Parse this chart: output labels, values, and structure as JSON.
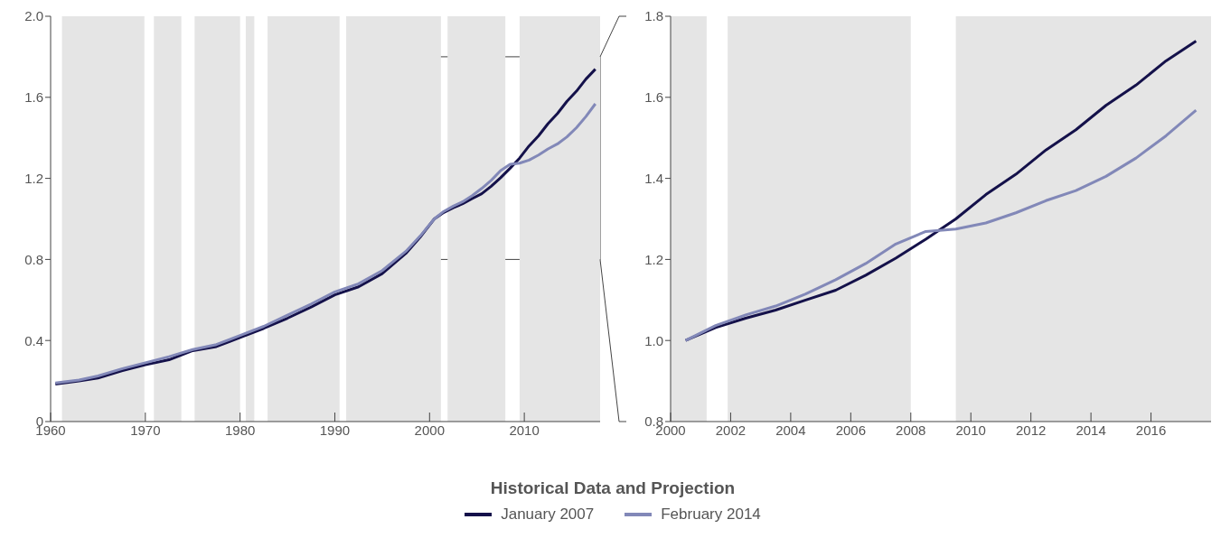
{
  "chart_data": [
    {
      "type": "line",
      "xlim": [
        1960,
        2018
      ],
      "xticks": [
        1960,
        1970,
        1980,
        1990,
        2000,
        2010
      ],
      "ylim": [
        0,
        2
      ],
      "yticks": [
        0,
        0.4,
        0.8,
        1.2,
        1.6,
        {
          "value": 2,
          "label": "2.0"
        }
      ],
      "grid": false,
      "legend": "bottom",
      "legend_title": "Historical Data and Projection",
      "bands": [
        {
          "axis": "x",
          "from": 1961.2,
          "to": 1969.9,
          "color": "#e5e5e5"
        },
        {
          "axis": "x",
          "from": 1970.9,
          "to": 1973.8,
          "color": "#e5e5e5"
        },
        {
          "axis": "x",
          "from": 1975.2,
          "to": 1980.0,
          "color": "#e5e5e5"
        },
        {
          "axis": "x",
          "from": 1980.6,
          "to": 1981.5,
          "color": "#e5e5e5"
        },
        {
          "axis": "x",
          "from": 1982.9,
          "to": 1990.5,
          "color": "#e5e5e5"
        },
        {
          "axis": "x",
          "from": 1991.2,
          "to": 2001.2,
          "color": "#e5e5e5"
        },
        {
          "axis": "x",
          "from": 2001.9,
          "to": 2008.0,
          "color": "#e5e5e5"
        },
        {
          "axis": "x",
          "from": 2009.5,
          "to": 2018,
          "color": "#e5e5e5"
        }
      ],
      "series": [
        {
          "name": "January 2007",
          "color": "#14114a",
          "x": [
            1960.5,
            1963,
            1965,
            1967.5,
            1970,
            1972.5,
            1975,
            1977.5,
            1980,
            1982.5,
            1985,
            1987.5,
            1990,
            1992.5,
            1995,
            1997.5,
            1999,
            2000.5,
            2001.5,
            2002.5,
            2003.5,
            2004.5,
            2005.5,
            2006.5,
            2007.5,
            2008.5,
            2009.5,
            2010.5,
            2011.5,
            2012.5,
            2013.5,
            2014.5,
            2015.5,
            2016.5,
            2017.5
          ],
          "values": [
            0.185,
            0.2,
            0.215,
            0.25,
            0.28,
            0.305,
            0.35,
            0.37,
            0.415,
            0.46,
            0.51,
            0.565,
            0.625,
            0.665,
            0.73,
            0.83,
            0.91,
            1.0,
            1.032,
            1.055,
            1.075,
            1.1,
            1.124,
            1.161,
            1.203,
            1.25,
            1.3,
            1.36,
            1.41,
            1.47,
            1.52,
            1.58,
            1.63,
            1.69,
            1.739
          ]
        },
        {
          "name": "February 2014",
          "color": "#8288b8",
          "x": [
            1960.5,
            1963,
            1965,
            1967.5,
            1970,
            1972.5,
            1975,
            1977.5,
            1980,
            1982.5,
            1985,
            1987.5,
            1990,
            1992.5,
            1995,
            1997.5,
            1999,
            2000.5,
            2001.5,
            2002.5,
            2003.5,
            2004.5,
            2005.5,
            2006.5,
            2007.5,
            2008.5,
            2009.5,
            2010.5,
            2011.5,
            2012.5,
            2013.5,
            2014.5,
            2015.5,
            2016.5,
            2017.5
          ],
          "values": [
            0.19,
            0.205,
            0.225,
            0.26,
            0.29,
            0.32,
            0.355,
            0.38,
            0.425,
            0.47,
            0.525,
            0.58,
            0.64,
            0.68,
            0.745,
            0.84,
            0.915,
            1.0,
            1.037,
            1.063,
            1.085,
            1.115,
            1.15,
            1.19,
            1.238,
            1.269,
            1.275,
            1.29,
            1.315,
            1.345,
            1.37,
            1.405,
            1.45,
            1.505,
            1.568
          ]
        }
      ]
    },
    {
      "type": "line",
      "xlim": [
        2000,
        2018
      ],
      "xticks": [
        2000,
        2002,
        2004,
        2006,
        2008,
        2010,
        2012,
        2014,
        2016
      ],
      "ylim": [
        0.8,
        1.8
      ],
      "yticks": [
        0.8,
        {
          "value": 1,
          "label": "1.0"
        },
        1.2,
        1.4,
        1.6,
        1.8
      ],
      "grid": false,
      "bands": [
        {
          "axis": "x",
          "from": 2000,
          "to": 2001.2,
          "color": "#e5e5e5"
        },
        {
          "axis": "x",
          "from": 2001.9,
          "to": 2008.0,
          "color": "#e5e5e5"
        },
        {
          "axis": "x",
          "from": 2009.5,
          "to": 2018,
          "color": "#e5e5e5"
        }
      ],
      "series": [
        {
          "color": "#14114a",
          "x": [
            2000.5,
            2001.5,
            2002.5,
            2003.5,
            2004.5,
            2005.5,
            2006.5,
            2007.5,
            2008.5,
            2009.5,
            2010.5,
            2011.5,
            2012.5,
            2013.5,
            2014.5,
            2015.5,
            2016.5,
            2017.5
          ],
          "values": [
            1.0,
            1.032,
            1.055,
            1.075,
            1.1,
            1.124,
            1.161,
            1.203,
            1.25,
            1.3,
            1.36,
            1.41,
            1.47,
            1.52,
            1.58,
            1.63,
            1.69,
            1.739
          ]
        },
        {
          "color": "#8288b8",
          "x": [
            2000.5,
            2001.5,
            2002.5,
            2003.5,
            2004.5,
            2005.5,
            2006.5,
            2007.5,
            2008.5,
            2009.5,
            2010.5,
            2011.5,
            2012.5,
            2013.5,
            2014.5,
            2015.5,
            2016.5,
            2017.5
          ],
          "values": [
            1.0,
            1.037,
            1.063,
            1.085,
            1.115,
            1.15,
            1.19,
            1.238,
            1.269,
            1.275,
            1.29,
            1.315,
            1.345,
            1.37,
            1.405,
            1.45,
            1.505,
            1.568
          ]
        }
      ]
    }
  ]
}
